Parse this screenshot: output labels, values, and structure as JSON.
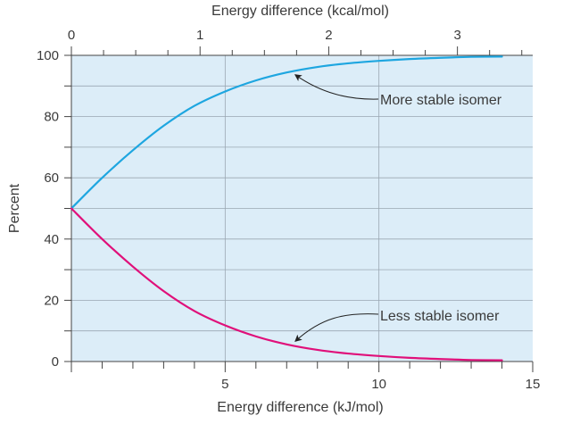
{
  "chart_data": {
    "type": "line",
    "xlabel": "Energy difference (kJ/mol)",
    "x2label": "Energy difference (kcal/mol)",
    "ylabel": "Percent",
    "xlim": [
      0,
      15
    ],
    "x2lim": [
      0,
      3.585
    ],
    "ylim": [
      0,
      100
    ],
    "x_ticks": [
      "5",
      "10",
      "15"
    ],
    "x2_ticks": [
      "0",
      "1",
      "2",
      "3"
    ],
    "y_ticks": [
      "0",
      "20",
      "40",
      "60",
      "80",
      "100"
    ],
    "grid": true,
    "background_color": "#dcedf8",
    "series": [
      {
        "color": "#1ea6e0",
        "x": [
          0,
          1,
          2,
          3,
          4,
          5,
          6,
          7,
          8,
          9,
          10,
          11,
          12,
          13,
          14
        ],
        "y": [
          50,
          60,
          69,
          77,
          83.5,
          88.2,
          91.8,
          94.4,
          96.2,
          97.4,
          98.2,
          98.8,
          99.2,
          99.5,
          99.6
        ]
      },
      {
        "color": "#e0107a",
        "x": [
          0,
          1,
          2,
          3,
          4,
          5,
          6,
          7,
          8,
          9,
          10,
          11,
          12,
          13,
          14
        ],
        "y": [
          50,
          40,
          31,
          23,
          16.5,
          11.8,
          8.2,
          5.6,
          3.8,
          2.6,
          1.8,
          1.2,
          0.8,
          0.5,
          0.4
        ]
      }
    ],
    "annotations": [
      {
        "text": "More stable isomer",
        "target_x": 7.3,
        "target_y": 93.5
      },
      {
        "text": "Less stable isomer",
        "target_x": 7.3,
        "target_y": 6.8
      }
    ]
  }
}
